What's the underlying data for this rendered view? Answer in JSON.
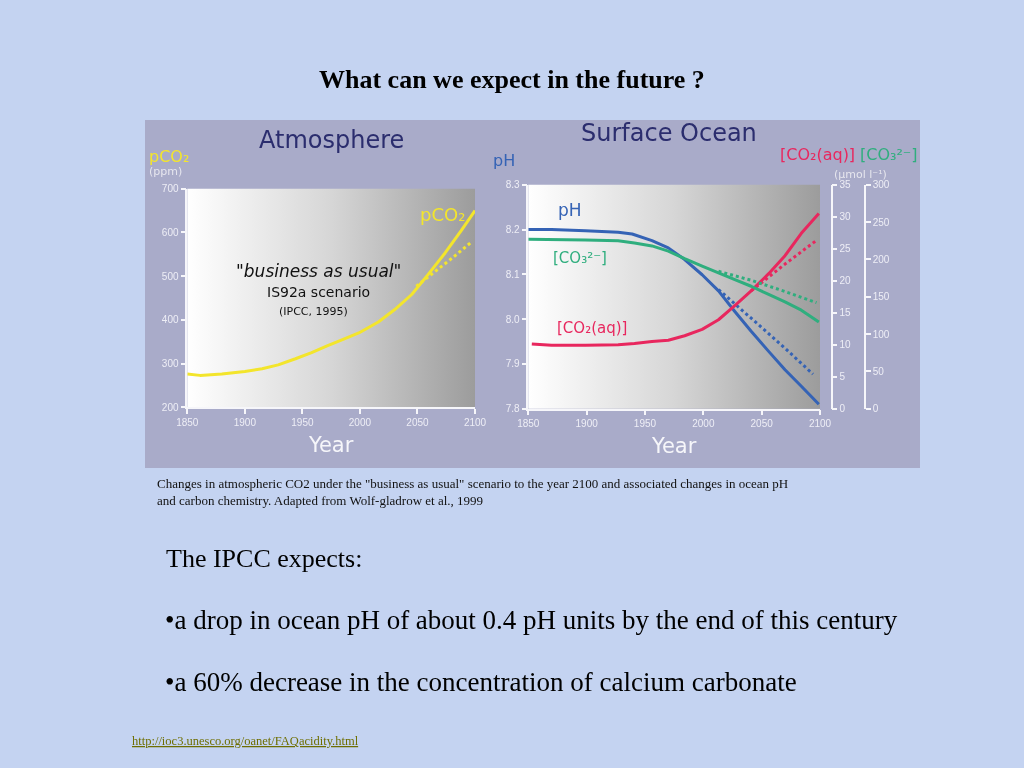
{
  "chart_data": [
    {
      "type": "other",
      "title": "What can we expect in the future ?"
    },
    {
      "type": "line",
      "title": "Atmosphere",
      "xlabel": "Year",
      "ylabel": "pCO₂\n(ppm)",
      "annotations": [
        "\"business as usual\"",
        "IS92a scenario",
        "(IPCC, 1995)"
      ],
      "xlim": [
        1850,
        2100
      ],
      "xticks": [
        1850,
        1900,
        1950,
        2000,
        2050,
        2100
      ],
      "ylim": [
        200,
        700
      ],
      "yticks": [
        200,
        300,
        400,
        500,
        600,
        700
      ],
      "series": [
        {
          "name": "pCO₂",
          "color": "#f3e52c",
          "x": [
            1850,
            1861,
            1880,
            1900,
            1915,
            1929,
            1944,
            1958,
            1972,
            1987,
            1999,
            2016,
            2030,
            2045,
            2059,
            2074,
            2088,
            2100
          ],
          "values": [
            276,
            273,
            276,
            282,
            288,
            297,
            311,
            325,
            341,
            357,
            370,
            395,
            423,
            458,
            503,
            553,
            604,
            650
          ]
        },
        {
          "color": "#f3e52c",
          "line_style": "dotted",
          "x": [
            2049,
            2065,
            2081,
            2096
          ],
          "values": [
            477,
            510,
            543,
            576
          ]
        }
      ]
    },
    {
      "type": "line",
      "title": "Surface Ocean",
      "xlabel": "Year",
      "ylabel": "pH",
      "y2label": "[CO₂(aq)]",
      "y3label": "[CO₃²⁻]",
      "annotations": [
        "(µmol l⁻¹)"
      ],
      "xlim": [
        1850,
        2100
      ],
      "xticks": [
        1850,
        1900,
        1950,
        2000,
        2050,
        2100
      ],
      "ylim": [
        7.8,
        8.3
      ],
      "yticks": [
        7.8,
        7.9,
        {
          "value": 8.0,
          "label": "8.0"
        },
        8.1,
        8.2,
        8.3
      ],
      "y2lim": [
        0,
        35
      ],
      "y2ticks": [
        0,
        5,
        10,
        15,
        20,
        25,
        30,
        35
      ],
      "y3lim": [
        0,
        300
      ],
      "y3ticks": [
        0,
        50,
        100,
        150,
        200,
        250,
        300
      ],
      "series": [
        {
          "name": "pH",
          "color": "#3563b5",
          "x": [
            1850,
            1870,
            1899,
            1927,
            1939,
            1956,
            1970,
            1984,
            1999,
            2013,
            2027,
            2041,
            2056,
            2070,
            2084,
            2099
          ],
          "values": [
            8.2,
            8.2,
            8.197,
            8.194,
            8.19,
            8.175,
            8.159,
            8.133,
            8.099,
            8.063,
            8.017,
            7.973,
            7.928,
            7.887,
            7.85,
            7.81
          ]
        },
        {
          "color": "#3563b5",
          "line_style": "dotted",
          "x": [
            2013,
            2041,
            2070,
            2094
          ],
          "values": [
            8.066,
            8.002,
            7.935,
            7.877
          ]
        },
        {
          "name": "[CO₃²⁻]",
          "color": "#2fae7e",
          "axis": "y3",
          "x": [
            1850,
            1899,
            1927,
            1941,
            1956,
            1970,
            1984,
            1999,
            2013,
            2027,
            2041,
            2056,
            2070,
            2084,
            2099
          ],
          "values": [
            227,
            226,
            225,
            222,
            218,
            211,
            201,
            191,
            182,
            173,
            164,
            153,
            143,
            132,
            116
          ]
        },
        {
          "color": "#2fae7e",
          "axis": "y3",
          "line_style": "dotted",
          "x": [
            2013,
            2041,
            2070,
            2097
          ],
          "values": [
            184,
            172,
            157,
            142
          ]
        },
        {
          "name": "[CO₂(aq)]",
          "color": "#e8275e",
          "axis": "y2",
          "x": [
            1853,
            1870,
            1899,
            1927,
            1941,
            1956,
            1970,
            1984,
            1999,
            2013,
            2027,
            2041,
            2056,
            2070,
            2084,
            2099
          ],
          "values": [
            10.1,
            9.9,
            9.9,
            10.0,
            10.2,
            10.5,
            10.7,
            11.4,
            12.4,
            13.9,
            16.1,
            18.4,
            21.1,
            23.9,
            27.4,
            30.5
          ]
        },
        {
          "color": "#e8275e",
          "axis": "y2",
          "line_style": "dotted",
          "x": [
            2041,
            2070,
            2097
          ],
          "values": [
            18.4,
            22.6,
            26.3
          ]
        }
      ]
    },
    {
      "type": "other",
      "annotations": [
        "Changes in atmospheric CO2 under the \"business as usual\" scenario to the year 2100 and associated changes in ocean pH and carbon chemistry. Adapted from Wolf-gladrow et al., 1999",
        "The IPCC expects:",
        "•a drop in ocean pH of about 0.4 pH units by the end of this century",
        "•a 60% decrease in the concentration of calcium carbonate",
        "http://ioc3.unesco.org/oanet/FAQacidity.html"
      ]
    }
  ]
}
